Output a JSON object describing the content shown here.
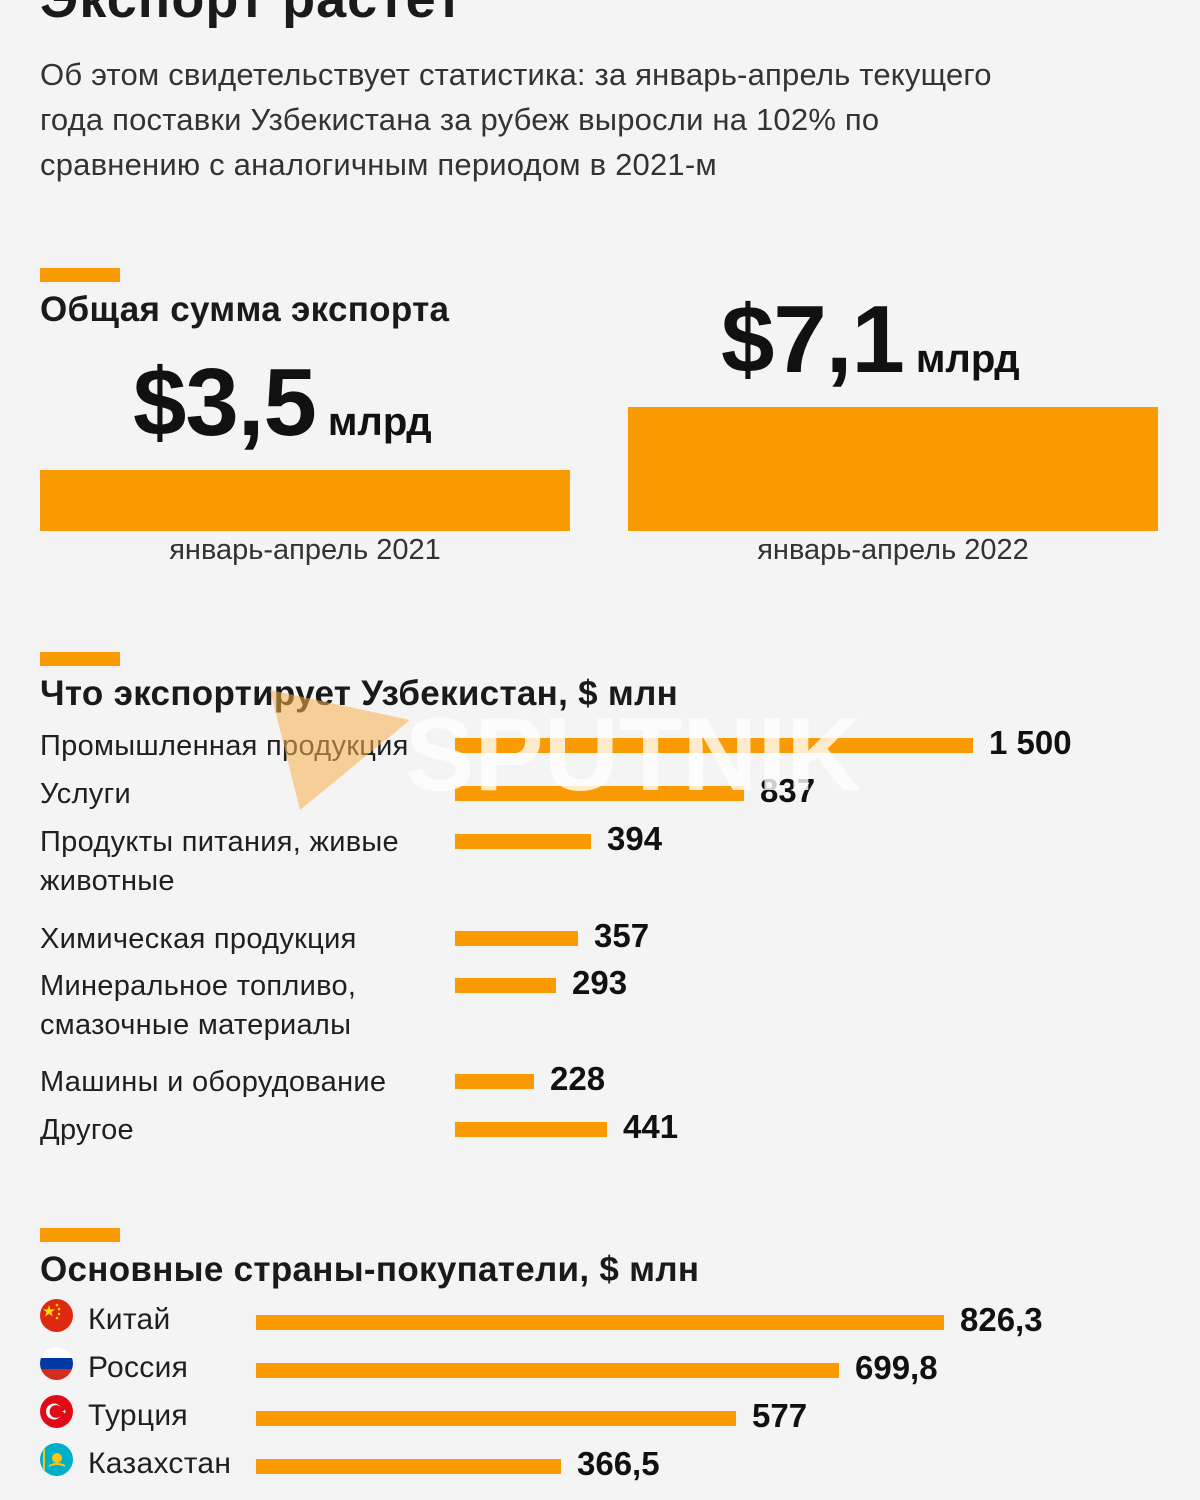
{
  "page_title": "Экспорт растет",
  "intro": "Об этом свидетельствует статистика: за январь-апрель текущего года поставки Узбекистана за рубеж выросли на 102% по сравнению с аналогичным периодом в 2021-м",
  "colors": {
    "accent": "#fb9b04",
    "background": "#f4f4f4",
    "text": "#1a1a1a"
  },
  "watermark": "SPUTNIK",
  "chart_data": [
    {
      "type": "bar",
      "title": "Общая сумма экспорта",
      "categories": [
        "январь-апрель 2021",
        "январь-апрель 2022"
      ],
      "values": [
        3.5,
        7.1
      ],
      "value_labels": [
        "$3,5",
        "$7,1"
      ],
      "unit": "млрд"
    },
    {
      "type": "bar",
      "orientation": "horizontal",
      "title": "Что экспортирует Узбекистан, $ млн",
      "categories": [
        "Промышленная продукция",
        "Услуги",
        "Продукты питания, живые животные",
        "Химическая продукция",
        "Минеральное топливо, смазочные материалы",
        "Машины и оборудование",
        "Другое"
      ],
      "values": [
        1500,
        837,
        394,
        357,
        293,
        228,
        441
      ],
      "value_labels": [
        "1 500",
        "837",
        "394",
        "357",
        "293",
        "228",
        "441"
      ],
      "xlim": [
        0,
        1500
      ]
    },
    {
      "type": "bar",
      "orientation": "horizontal",
      "title": "Основные страны-покупатели, $ млн",
      "categories": [
        "Китай",
        "Россия",
        "Турция",
        "Казахстан"
      ],
      "values": [
        826.3,
        699.8,
        577,
        366.5
      ],
      "value_labels": [
        "826,3",
        "699,8",
        "577",
        "366,5"
      ],
      "flag_icons": [
        "china-flag-icon",
        "russia-flag-icon",
        "turkey-flag-icon",
        "kazakhstan-flag-icon"
      ],
      "xlim": [
        0,
        826.3
      ]
    }
  ]
}
